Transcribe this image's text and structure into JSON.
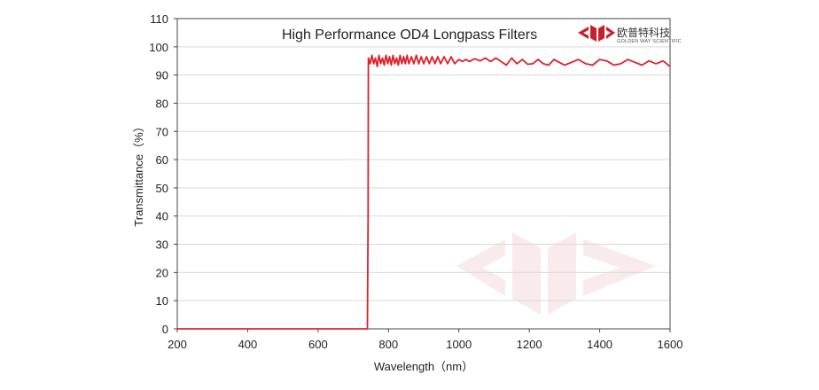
{
  "chart_data": {
    "type": "line",
    "title": "High Performance OD4 Longpass  Filters",
    "xlabel": "Wavelength（nm）",
    "ylabel": "Transmittance（%）",
    "xlim": [
      200,
      1600
    ],
    "ylim": [
      0,
      110
    ],
    "xticks": [
      200,
      400,
      600,
      800,
      1000,
      1200,
      1400,
      1600
    ],
    "yticks": [
      0,
      10,
      20,
      30,
      40,
      50,
      60,
      70,
      80,
      90,
      100,
      110
    ],
    "grid": "horizontal",
    "legend": "none",
    "series": [
      {
        "color": "#e0202a",
        "points": [
          [
            200,
            0
          ],
          [
            740,
            0
          ],
          [
            742,
            40
          ],
          [
            743,
            96
          ],
          [
            748,
            94
          ],
          [
            753,
            97
          ],
          [
            758,
            94
          ],
          [
            763,
            96
          ],
          [
            768,
            93
          ],
          [
            773,
            97
          ],
          [
            778,
            94
          ],
          [
            783,
            96
          ],
          [
            788,
            93.5
          ],
          [
            793,
            97
          ],
          [
            798,
            94
          ],
          [
            803,
            96.5
          ],
          [
            808,
            93.5
          ],
          [
            813,
            97
          ],
          [
            818,
            94
          ],
          [
            823,
            96
          ],
          [
            828,
            93.5
          ],
          [
            833,
            97
          ],
          [
            838,
            94
          ],
          [
            843,
            96.5
          ],
          [
            848,
            94
          ],
          [
            853,
            97
          ],
          [
            858,
            94
          ],
          [
            865,
            96.5
          ],
          [
            872,
            94
          ],
          [
            879,
            97
          ],
          [
            886,
            94
          ],
          [
            893,
            96.5
          ],
          [
            900,
            94
          ],
          [
            908,
            96.5
          ],
          [
            916,
            94
          ],
          [
            924,
            96.5
          ],
          [
            932,
            94
          ],
          [
            940,
            96.5
          ],
          [
            948,
            94
          ],
          [
            958,
            96.5
          ],
          [
            968,
            94
          ],
          [
            978,
            96.5
          ],
          [
            988,
            94
          ],
          [
            1000,
            95.5
          ],
          [
            1010,
            94.8
          ],
          [
            1020,
            95.5
          ],
          [
            1030,
            94.8
          ],
          [
            1045,
            95.8
          ],
          [
            1060,
            95
          ],
          [
            1075,
            96
          ],
          [
            1090,
            94.8
          ],
          [
            1105,
            96
          ],
          [
            1120,
            94.8
          ],
          [
            1135,
            93.5
          ],
          [
            1150,
            96
          ],
          [
            1165,
            94
          ],
          [
            1180,
            95.5
          ],
          [
            1195,
            93.8
          ],
          [
            1210,
            94
          ],
          [
            1225,
            95.5
          ],
          [
            1240,
            94
          ],
          [
            1255,
            93.5
          ],
          [
            1270,
            95.5
          ],
          [
            1285,
            94.5
          ],
          [
            1300,
            93.5
          ],
          [
            1320,
            94.5
          ],
          [
            1340,
            95.5
          ],
          [
            1360,
            94
          ],
          [
            1380,
            93.5
          ],
          [
            1400,
            95.5
          ],
          [
            1420,
            95
          ],
          [
            1440,
            93.5
          ],
          [
            1460,
            94
          ],
          [
            1480,
            95.5
          ],
          [
            1500,
            94.5
          ],
          [
            1520,
            93.5
          ],
          [
            1540,
            95
          ],
          [
            1560,
            94
          ],
          [
            1580,
            95
          ],
          [
            1600,
            93
          ]
        ]
      }
    ]
  },
  "logo": {
    "chinese_name": "欧普特科技",
    "english_name": "GOLDEN WAY SCIENTIFIC",
    "brand_color": "#c8202a"
  }
}
